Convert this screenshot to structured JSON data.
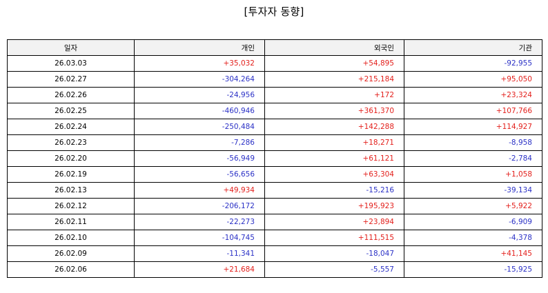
{
  "title": "[투자자 동향]",
  "headers": [
    "일자",
    "개인",
    "외국인",
    "기관"
  ],
  "colors": {
    "positive": "#e3201c",
    "negative": "#2b31c6",
    "header_bg": "#f2f2f2"
  },
  "rows": [
    [
      "26.03.03",
      "+35,032",
      "+54,895",
      "-92,955"
    ],
    [
      "26.02.27",
      "-304,264",
      "+215,184",
      "+95,050"
    ],
    [
      "26.02.26",
      "-24,956",
      "+172",
      "+23,324"
    ],
    [
      "26.02.25",
      "-460,946",
      "+361,370",
      "+107,766"
    ],
    [
      "26.02.24",
      "-250,484",
      "+142,288",
      "+114,927"
    ],
    [
      "26.02.23",
      "-7,286",
      "+18,271",
      "-8,958"
    ],
    [
      "26.02.20",
      "-56,949",
      "+61,121",
      "-2,784"
    ],
    [
      "26.02.19",
      "-56,656",
      "+63,304",
      "+1,058"
    ],
    [
      "26.02.13",
      "+49,934",
      "-15,216",
      "-39,134"
    ],
    [
      "26.02.12",
      "-206,172",
      "+195,923",
      "+5,922"
    ],
    [
      "26.02.11",
      "-22,273",
      "+23,894",
      "-6,909"
    ],
    [
      "26.02.10",
      "-104,745",
      "+111,515",
      "-4,378"
    ],
    [
      "26.02.09",
      "-11,341",
      "-18,047",
      "+41,145"
    ],
    [
      "26.02.06",
      "+21,684",
      "-5,557",
      "-15,925"
    ]
  ]
}
